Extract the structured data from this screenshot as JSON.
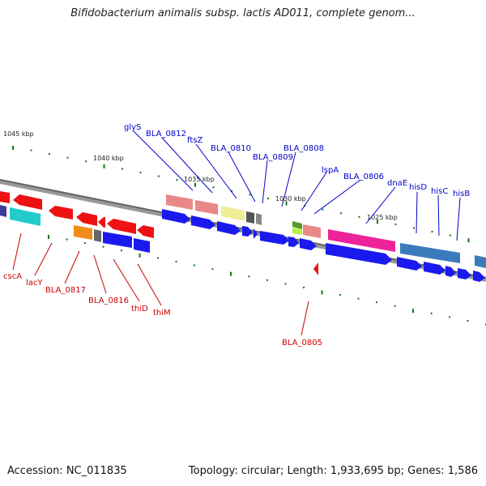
{
  "title": "Bifidobacterium animalis subsp. lactis AD011, complete genom...",
  "accession": "Accession: NC_011835",
  "stats": "Topology: circular; Length: 1,933,695 bp; Genes: 1,586",
  "colors": {
    "forward_label": "#0000cc",
    "reverse_label": "#cc0000",
    "tick": "#117711",
    "backbone": "#777777"
  },
  "ruler_labels": [
    "1045 kbp",
    "1040 kbp",
    "1035 kbp",
    "1030 kbp",
    "1025 kbp"
  ],
  "forward_genes": [
    "glyS",
    "BLA_0812",
    "ftsZ",
    "BLA_0810",
    "BLA_0809",
    "BLA_0808",
    "lspA",
    "BLA_0806",
    "dnaE",
    "hisD",
    "hisC",
    "hisB"
  ],
  "reverse_genes": [
    "cscA",
    "lacY",
    "BLA_0817",
    "BLA_0816",
    "thiD",
    "thiM",
    "BLA_0805"
  ]
}
